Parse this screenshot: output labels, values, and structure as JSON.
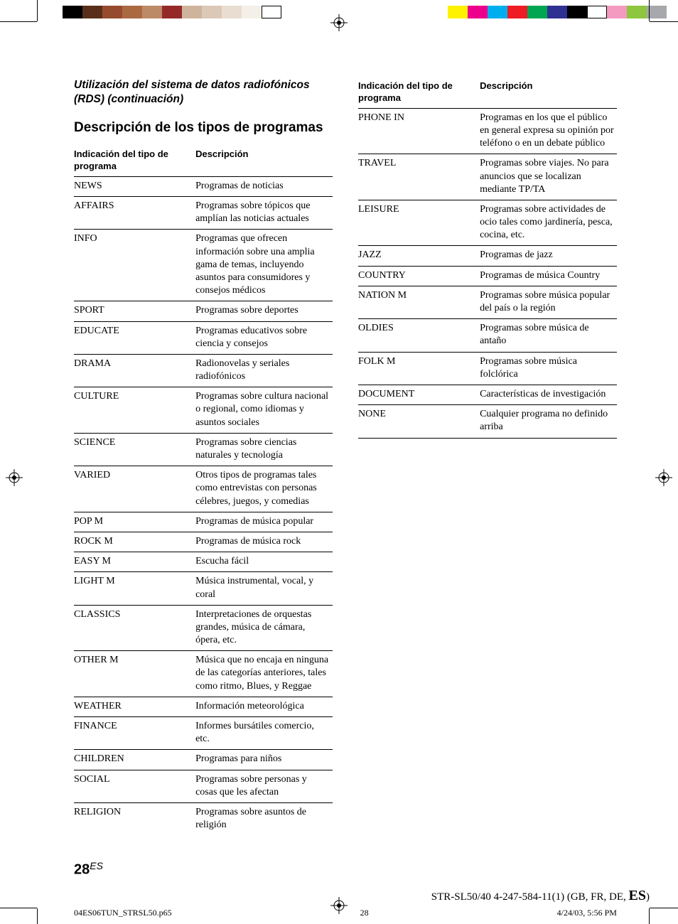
{
  "print_marks": {
    "left_colors": [
      "#000000",
      "#5a2f1a",
      "#964b2e",
      "#ab6942",
      "#bd8a68",
      "#952929",
      "#cfb49d",
      "#dcc8b6",
      "#e9ddd1",
      "#f4efe9",
      "#ffffff"
    ],
    "right_colors": [
      "#fff200",
      "#ec008c",
      "#00aeef",
      "#ee1c25",
      "#00a651",
      "#2e3192",
      "#000000",
      "#ffffff",
      "#f49ac1",
      "#8dc63f",
      "#a6a8ab"
    ]
  },
  "continuation": "Utilización del sistema de datos radiofónicos (RDS) (continuación)",
  "section_title": "Descripción de los tipos de programas",
  "table_headers": {
    "col1": "Indicación del tipo de programa",
    "col2": "Descripción"
  },
  "left_rows": [
    {
      "type": "NEWS",
      "desc": "Programas de noticias"
    },
    {
      "type": "AFFAIRS",
      "desc": "Programas sobre tópicos que amplían las noticias actuales"
    },
    {
      "type": "INFO",
      "desc": "Programas que ofrecen información sobre una amplia gama de temas, incluyendo asuntos para consumidores y consejos médicos"
    },
    {
      "type": "SPORT",
      "desc": "Programas sobre deportes"
    },
    {
      "type": "EDUCATE",
      "desc": "Programas educativos sobre ciencia y consejos"
    },
    {
      "type": "DRAMA",
      "desc": "Radionovelas y seriales radiofónicos"
    },
    {
      "type": "CULTURE",
      "desc": "Programas sobre cultura nacional o regional, como idiomas y asuntos sociales"
    },
    {
      "type": "SCIENCE",
      "desc": "Programas sobre ciencias naturales y tecnología"
    },
    {
      "type": "VARIED",
      "desc": "Otros tipos de programas tales como entrevistas con personas célebres, juegos, y comedias"
    },
    {
      "type": "POP M",
      "desc": "Programas de música popular"
    },
    {
      "type": "ROCK M",
      "desc": "Programas de música rock"
    },
    {
      "type": "EASY M",
      "desc": "Escucha fácil"
    },
    {
      "type": "LIGHT M",
      "desc": "Música instrumental, vocal, y coral"
    },
    {
      "type": "CLASSICS",
      "desc": "Interpretaciones de orquestas grandes, música de cámara, ópera, etc."
    },
    {
      "type": "OTHER M",
      "desc": "Música que no encaja en ninguna de las categorías anteriores, tales como ritmo, Blues, y Reggae"
    },
    {
      "type": "WEATHER",
      "desc": "Información meteorológica"
    },
    {
      "type": "FINANCE",
      "desc": "Informes bursátiles comercio, etc."
    },
    {
      "type": "CHILDREN",
      "desc": "Programas para niños"
    },
    {
      "type": "SOCIAL",
      "desc": "Programas sobre personas y cosas que les afectan"
    },
    {
      "type": "RELIGION",
      "desc": "Programas sobre asuntos de religión"
    }
  ],
  "right_rows": [
    {
      "type": "PHONE IN",
      "desc": "Programas en los que el público en general expresa su opinión por teléfono o en un debate público"
    },
    {
      "type": "TRAVEL",
      "desc": "Programas sobre viajes. No para anuncios que se localizan mediante TP/TA"
    },
    {
      "type": "LEISURE",
      "desc": "Programas sobre actividades de ocio tales como jardinería, pesca, cocina, etc."
    },
    {
      "type": "JAZZ",
      "desc": "Programas de jazz"
    },
    {
      "type": "COUNTRY",
      "desc": "Programas de música Country"
    },
    {
      "type": "NATION M",
      "desc": "Programas sobre música popular del país o la región"
    },
    {
      "type": "OLDIES",
      "desc": "Programas sobre música de antaño"
    },
    {
      "type": "FOLK M",
      "desc": "Programas sobre música folclórica"
    },
    {
      "type": "DOCUMENT",
      "desc": "Características de investigación"
    },
    {
      "type": "NONE",
      "desc": "Cualquier programa no definido arriba"
    }
  ],
  "page_number": "28",
  "page_lang": "ES",
  "footer": {
    "filename": "04ES06TUN_STRSL50.p65",
    "sheet": "28",
    "timestamp": "4/24/03, 5:56 PM"
  },
  "pubcode_prefix": "STR-SL50/40   4-247-584-11(1) (GB, FR, DE, ",
  "pubcode_lang": "ES",
  "pubcode_suffix": ")"
}
